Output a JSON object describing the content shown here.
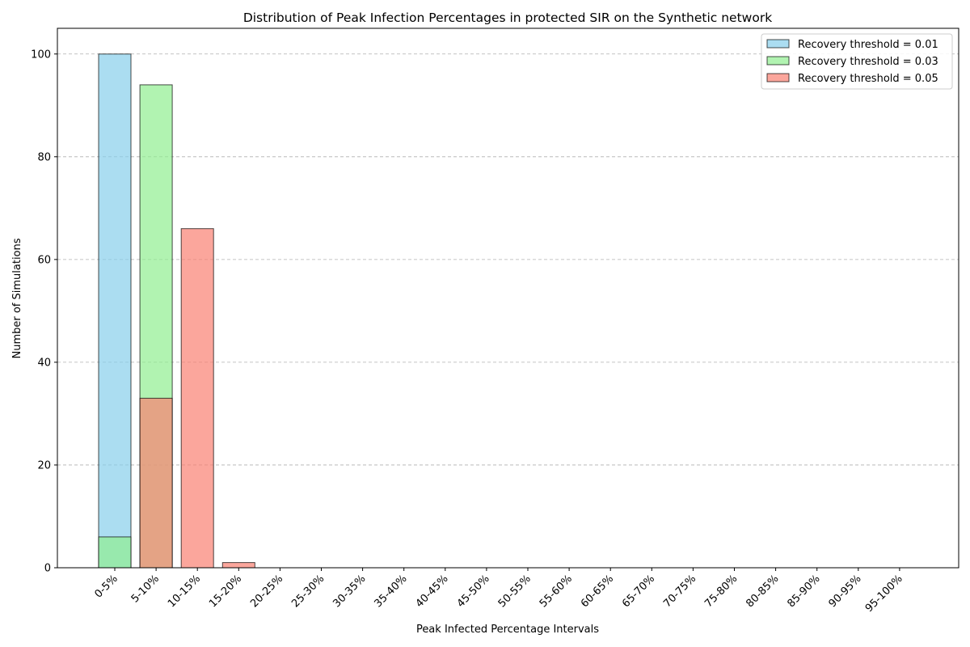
{
  "chart_data": {
    "type": "bar",
    "title": "Distribution of Peak Infection Percentages in protected SIR on the Synthetic network",
    "xlabel": "Peak Infected Percentage Intervals",
    "ylabel": "Number of Simulations",
    "categories": [
      "0-5%",
      "5-10%",
      "10-15%",
      "15-20%",
      "20-25%",
      "25-30%",
      "30-35%",
      "35-40%",
      "40-45%",
      "45-50%",
      "50-55%",
      "55-60%",
      "60-65%",
      "65-70%",
      "70-75%",
      "75-80%",
      "80-85%",
      "85-90%",
      "90-95%",
      "95-100%"
    ],
    "series": [
      {
        "name": "Recovery threshold = 0.01",
        "color": "#87ceeb",
        "values": [
          100,
          0,
          0,
          0,
          0,
          0,
          0,
          0,
          0,
          0,
          0,
          0,
          0,
          0,
          0,
          0,
          0,
          0,
          0,
          0
        ]
      },
      {
        "name": "Recovery threshold = 0.03",
        "color": "#90ee90",
        "values": [
          6,
          94,
          0,
          0,
          0,
          0,
          0,
          0,
          0,
          0,
          0,
          0,
          0,
          0,
          0,
          0,
          0,
          0,
          0,
          0
        ]
      },
      {
        "name": "Recovery threshold = 0.05",
        "color": "#fa8072",
        "values": [
          0,
          33,
          66,
          1,
          0,
          0,
          0,
          0,
          0,
          0,
          0,
          0,
          0,
          0,
          0,
          0,
          0,
          0,
          0,
          0
        ]
      }
    ],
    "bar_mode": "overlaid",
    "bar_opacity": 0.7,
    "bar_edge_color": "#000000",
    "ylim": [
      0,
      105
    ],
    "yticks": [
      0,
      20,
      40,
      60,
      80,
      100
    ],
    "grid": "y-dashed",
    "legend_position": "top-right"
  }
}
